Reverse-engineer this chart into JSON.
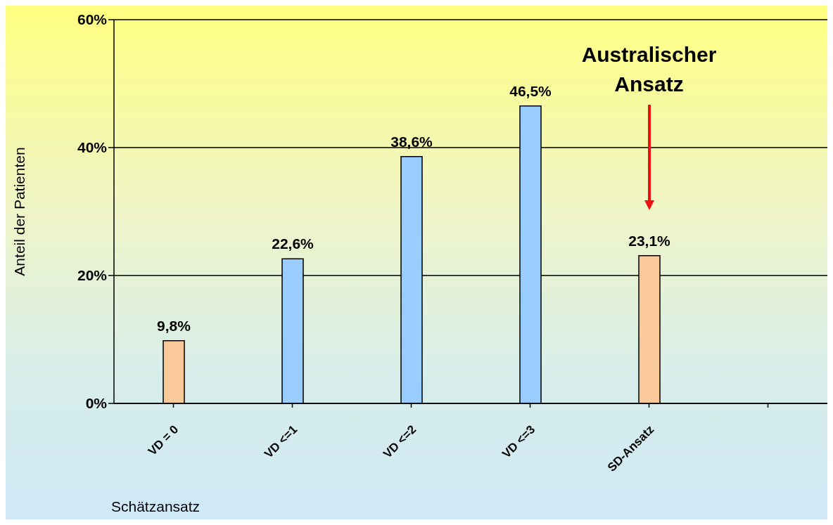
{
  "chart_data": {
    "type": "bar",
    "ylabel": "Anteil der Patienten",
    "xlabel": "Schätzansatz",
    "categories": [
      "VD = 0",
      "VD <=1",
      "VD <=2",
      "VD <=3",
      "SD-Ansatz",
      null
    ],
    "values": [
      9.8,
      22.6,
      38.6,
      46.5,
      23.1,
      null
    ],
    "colors": [
      "#f9c99a",
      "#99ccff",
      "#99ccff",
      "#99ccff",
      "#f9c99a",
      "#99ccff"
    ],
    "value_labels": [
      "9,8%",
      "22,6%",
      "38,6%",
      "46,5%",
      "23,1%",
      null
    ],
    "ylim": [
      0,
      60
    ],
    "yticks": [
      {
        "value": 0,
        "label": "0%"
      },
      {
        "value": 20,
        "label": "20%"
      },
      {
        "value": 40,
        "label": "40%"
      },
      {
        "value": 60,
        "label": "60%"
      }
    ],
    "grid": "y",
    "annotations": [
      "Australischer Ansatz"
    ]
  }
}
